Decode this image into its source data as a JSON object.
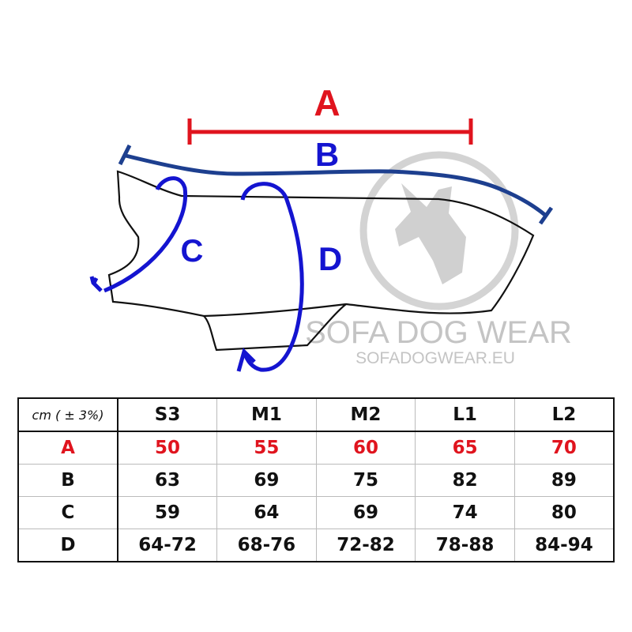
{
  "diagram": {
    "labels": {
      "a": "A",
      "b": "B",
      "c": "C",
      "d": "D"
    },
    "watermark": {
      "brand": "SOFA DOG WEAR",
      "url": "SOFADOGWEAR.EU",
      "logo": "dog-head-logo"
    },
    "colors": {
      "a": "#e0141e",
      "b": "#1d3f8f",
      "cd": "#1414d0",
      "outline": "#111111",
      "watermark": "#c8c8c8"
    }
  },
  "table": {
    "unit_label": "cm ( ± 3%)",
    "sizes": [
      "S3",
      "M1",
      "M2",
      "L1",
      "L2"
    ],
    "rows": [
      {
        "label": "A",
        "values": [
          "50",
          "55",
          "60",
          "65",
          "70"
        ],
        "highlight": true
      },
      {
        "label": "B",
        "values": [
          "63",
          "69",
          "75",
          "82",
          "89"
        ]
      },
      {
        "label": "C",
        "values": [
          "59",
          "64",
          "69",
          "74",
          "80"
        ]
      },
      {
        "label": "D",
        "values": [
          "64-72",
          "68-76",
          "72-82",
          "78-88",
          "84-94"
        ]
      }
    ]
  }
}
